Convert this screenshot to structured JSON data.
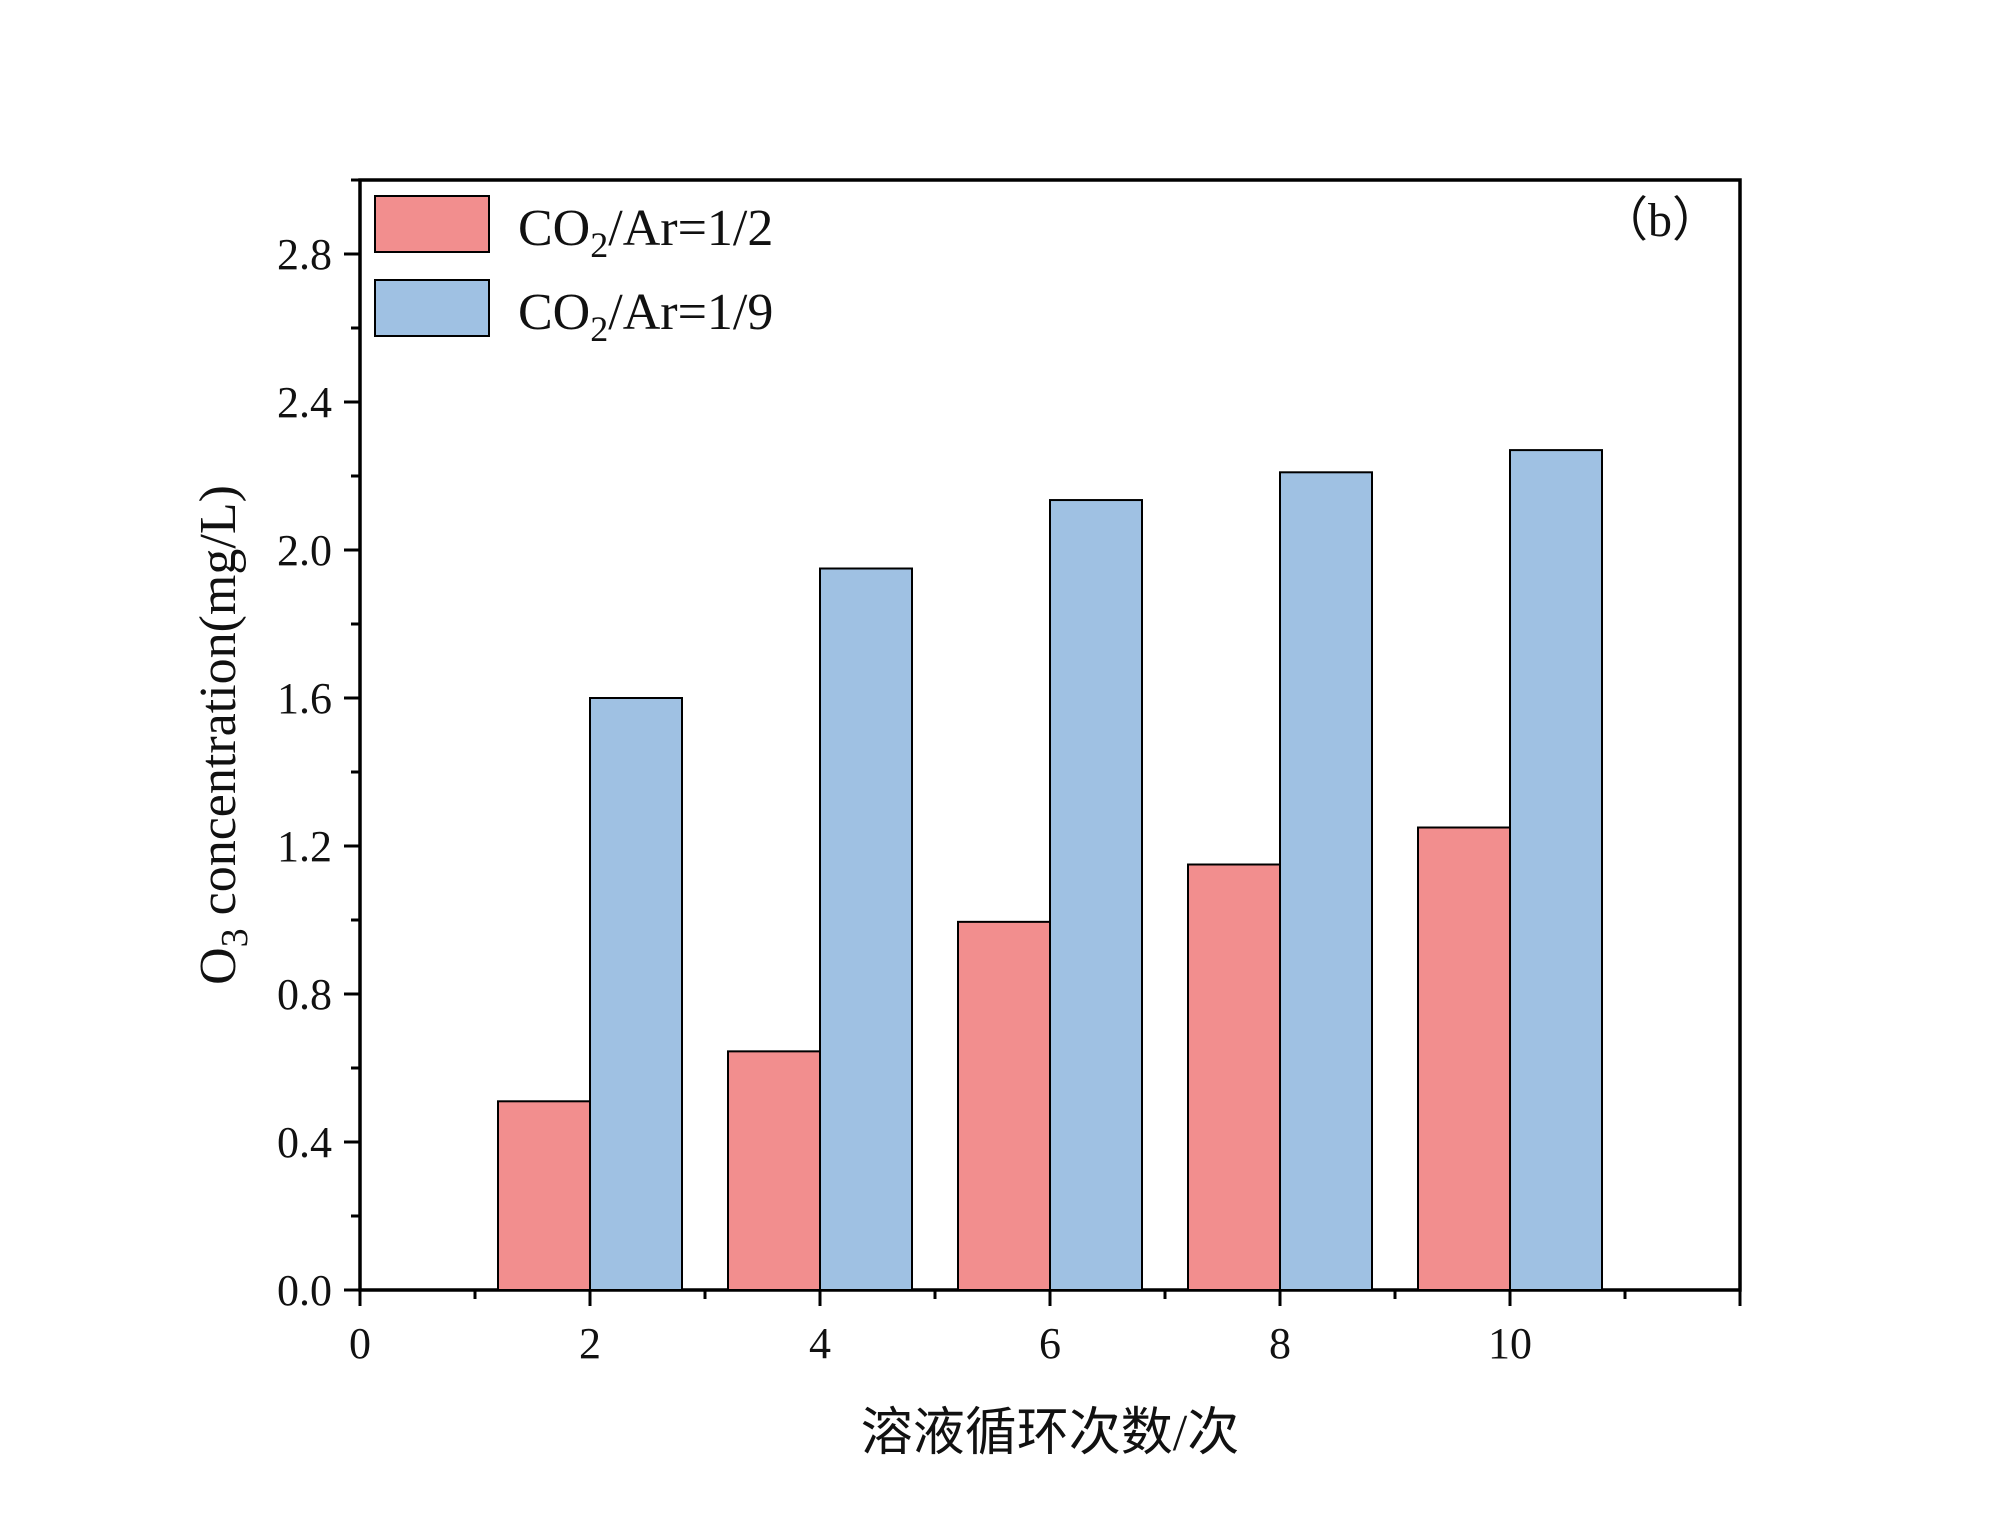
{
  "chart_data": {
    "type": "bar",
    "panel_label": "（b）",
    "xlabel": "溶液循环次数/次",
    "ylabel_main": "O",
    "ylabel_sub": "3",
    "ylabel_rest": " concentration(mg/L)",
    "x": [
      2,
      4,
      6,
      8,
      10
    ],
    "xlim": [
      0,
      12
    ],
    "x_ticks": [
      0,
      2,
      4,
      6,
      8,
      10
    ],
    "ylim": [
      0,
      3.0
    ],
    "y_ticks": [
      0.0,
      0.4,
      0.8,
      1.2,
      1.6,
      2.0,
      2.4,
      2.8
    ],
    "y_tick_labels": [
      "0.0",
      "0.4",
      "0.8",
      "1.2",
      "1.6",
      "2.0",
      "2.4",
      "2.8"
    ],
    "grid": false,
    "legend_position": "top-left",
    "series": [
      {
        "name_main": "CO",
        "name_sub": "2",
        "name_rest": "/Ar=1/2",
        "color": "#f28e8e",
        "values": [
          0.51,
          0.645,
          0.995,
          1.15,
          1.25
        ]
      },
      {
        "name_main": "CO",
        "name_sub": "2",
        "name_rest": "/Ar=1/9",
        "color": "#9fc1e3",
        "values": [
          1.6,
          1.95,
          2.135,
          2.21,
          2.27
        ]
      }
    ]
  }
}
